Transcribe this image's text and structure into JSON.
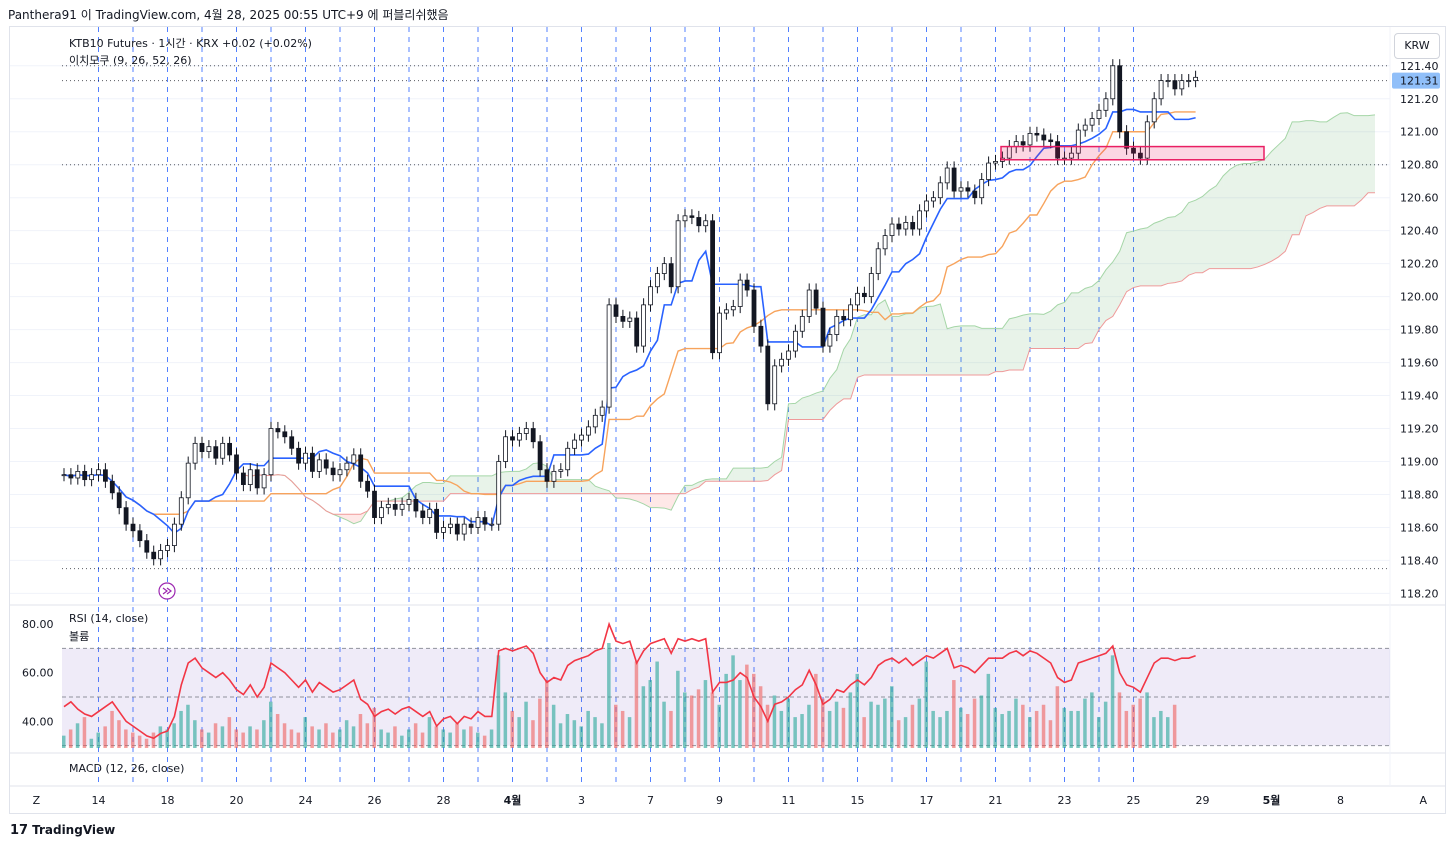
{
  "header": {
    "published_text": "Panthera91 이 TradingView.com, 4월 28, 2025 00:55 UTC+9 에 퍼블리쉬했음"
  },
  "legend": {
    "symbol_line": "KTB10 Futures · 1시간 · KRX  +0.02 (+0.02%)",
    "ichimoku": "이치모쿠 (9, 26, 52, 26)",
    "rsi": "RSI (14, close)",
    "volume": "볼륨",
    "macd": "MACD (12, 26, close)"
  },
  "currency": "KRW",
  "current_price": "121.31",
  "footer": {
    "logo_mark": "17",
    "logo_text": "TradingView"
  },
  "colors": {
    "up": "#26a69a",
    "down": "#ef5350",
    "candle": "#131722",
    "tenkan": "#2962ff",
    "kijun": "#f7a35c",
    "rsi": "#f23645",
    "rsi_band": "#7e57c2",
    "marker": "#9c27b0",
    "price_label": "#90bff9",
    "box": "#e91e63",
    "grid": "#2962ff"
  },
  "chart_data": [
    {
      "type": "candlestick",
      "title": "KTB10 Futures · 1시간 · KRX",
      "y_ticks": [
        "121.40",
        "121.20",
        "121.00",
        "120.80",
        "120.60",
        "120.40",
        "120.20",
        "120.00",
        "119.80",
        "119.60",
        "119.40",
        "119.20",
        "119.00",
        "118.80",
        "118.60",
        "118.40",
        "118.20"
      ],
      "y_tick_values": [
        121.4,
        121.2,
        121.0,
        120.8,
        120.6,
        120.4,
        120.2,
        120.0,
        119.8,
        119.6,
        119.4,
        119.2,
        119.0,
        118.8,
        118.6,
        118.4,
        118.2
      ],
      "ylim": [
        118.16,
        121.52
      ],
      "x_labels": [
        {
          "label": "Z",
          "bar": -4
        },
        {
          "label": "14",
          "bar": 5
        },
        {
          "label": "18",
          "bar": 15
        },
        {
          "label": "20",
          "bar": 25
        },
        {
          "label": "24",
          "bar": 35
        },
        {
          "label": "26",
          "bar": 45
        },
        {
          "label": "28",
          "bar": 55
        },
        {
          "label": "4월",
          "bar": 65
        },
        {
          "label": "3",
          "bar": 75
        },
        {
          "label": "7",
          "bar": 85
        },
        {
          "label": "9",
          "bar": 95
        },
        {
          "label": "11",
          "bar": 105
        },
        {
          "label": "15",
          "bar": 115
        },
        {
          "label": "17",
          "bar": 125
        },
        {
          "label": "21",
          "bar": 135
        },
        {
          "label": "23",
          "bar": 145
        },
        {
          "label": "25",
          "bar": 155
        },
        {
          "label": "29",
          "bar": 165
        },
        {
          "label": "5월",
          "bar": 175
        },
        {
          "label": "8",
          "bar": 185
        },
        {
          "label": "A",
          "bar": 197
        }
      ],
      "session_lines": [
        5,
        10,
        15,
        20,
        25,
        30,
        35,
        40,
        45,
        50,
        55,
        60,
        65,
        70,
        75,
        80,
        85,
        90,
        95,
        100,
        105,
        110,
        115,
        120,
        125,
        130,
        135,
        140,
        145,
        150,
        155
      ],
      "bars": 161,
      "closes": [
        118.92,
        118.9,
        118.94,
        118.89,
        118.92,
        118.95,
        118.88,
        118.81,
        118.72,
        118.62,
        118.58,
        118.52,
        118.45,
        118.41,
        118.46,
        118.49,
        118.62,
        118.78,
        118.99,
        119.11,
        119.06,
        119.09,
        119.02,
        119.11,
        119.04,
        118.93,
        118.86,
        118.95,
        118.84,
        118.92,
        119.2,
        119.18,
        119.15,
        119.08,
        118.99,
        119.05,
        118.94,
        119.01,
        118.96,
        118.92,
        118.95,
        118.99,
        119.04,
        118.88,
        118.82,
        118.66,
        118.72,
        118.74,
        118.71,
        118.74,
        118.77,
        118.7,
        118.66,
        118.71,
        118.57,
        118.6,
        118.62,
        118.56,
        118.62,
        118.6,
        118.66,
        118.62,
        118.62,
        119.0,
        119.15,
        119.13,
        119.17,
        119.2,
        119.12,
        118.95,
        118.88,
        118.94,
        118.95,
        119.08,
        119.13,
        119.16,
        119.21,
        119.28,
        119.33,
        119.95,
        119.88,
        119.85,
        119.87,
        119.7,
        119.95,
        120.06,
        120.14,
        120.2,
        120.06,
        120.46,
        120.49,
        120.48,
        120.43,
        120.46,
        119.66,
        119.9,
        119.92,
        119.94,
        120.1,
        120.04,
        119.82,
        119.7,
        119.35,
        119.58,
        119.62,
        119.67,
        119.79,
        119.88,
        120.04,
        119.93,
        119.7,
        119.77,
        119.88,
        119.86,
        119.95,
        120.02,
        120.0,
        120.14,
        120.29,
        120.37,
        120.44,
        120.41,
        120.45,
        120.41,
        120.52,
        120.58,
        120.6,
        120.69,
        120.78,
        120.64,
        120.66,
        120.64,
        120.6,
        120.71,
        120.81,
        120.82,
        120.84,
        120.91,
        120.94,
        120.92,
        120.99,
        120.98,
        120.95,
        120.94,
        120.84,
        120.84,
        120.87,
        121.01,
        121.04,
        121.08,
        121.13,
        121.2,
        121.4,
        121.0,
        120.9,
        120.87,
        120.84,
        121.06,
        121.2,
        121.31,
        121.31,
        121.26,
        121.31,
        121.31,
        121.33
      ]
    },
    {
      "type": "line",
      "title": "RSI (14, close)",
      "y_ticks": [
        "80.00",
        "60.00",
        "40.00"
      ],
      "y_tick_values": [
        80,
        60,
        40
      ],
      "ylim": [
        29,
        85
      ],
      "bands": [
        70,
        50,
        30
      ],
      "values": [
        46,
        48,
        45,
        43,
        42,
        44,
        46,
        48,
        44,
        40,
        38,
        36,
        34,
        33,
        35,
        36,
        42,
        55,
        64,
        66,
        62,
        60,
        58,
        60,
        57,
        53,
        51,
        55,
        50,
        54,
        64,
        62,
        60,
        57,
        54,
        57,
        52,
        56,
        54,
        52,
        53,
        55,
        57,
        49,
        47,
        42,
        44,
        45,
        43,
        45,
        46,
        44,
        42,
        44,
        38,
        41,
        42,
        39,
        42,
        41,
        44,
        42,
        42,
        69,
        70,
        69,
        70,
        71,
        68,
        60,
        56,
        58,
        57,
        63,
        65,
        66,
        67,
        69,
        70,
        80,
        73,
        72,
        73,
        64,
        69,
        72,
        73,
        74,
        68,
        74,
        73,
        74,
        73,
        74,
        52,
        56,
        56,
        57,
        60,
        58,
        50,
        46,
        40,
        47,
        48,
        50,
        53,
        55,
        61,
        55,
        47,
        49,
        53,
        52,
        55,
        57,
        55,
        58,
        63,
        65,
        66,
        64,
        66,
        63,
        65,
        67,
        66,
        68,
        70,
        62,
        63,
        62,
        60,
        63,
        66,
        66,
        66,
        68,
        69,
        67,
        69,
        68,
        66,
        64,
        58,
        56,
        57,
        64,
        65,
        66,
        67,
        68,
        71,
        60,
        55,
        54,
        52,
        58,
        64,
        66,
        66,
        65,
        66,
        66,
        67
      ]
    },
    {
      "type": "bar",
      "title": "볼륨",
      "values": [
        4,
        6,
        8,
        10,
        3,
        5,
        7,
        12,
        9,
        6,
        5,
        4,
        3,
        5,
        7,
        6,
        8,
        12,
        14,
        9,
        6,
        5,
        8,
        7,
        10,
        6,
        5,
        7,
        6,
        9,
        15,
        11,
        8,
        6,
        5,
        10,
        7,
        6,
        8,
        5,
        6,
        9,
        7,
        11,
        8,
        13,
        6,
        5,
        7,
        4,
        6,
        8,
        5,
        10,
        7,
        6,
        5,
        8,
        6,
        7,
        5,
        4,
        6,
        30,
        18,
        12,
        10,
        15,
        9,
        16,
        22,
        14,
        8,
        11,
        9,
        7,
        12,
        10,
        8,
        34,
        14,
        12,
        10,
        28,
        20,
        22,
        28,
        15,
        12,
        25,
        18,
        17,
        19,
        22,
        18,
        14,
        24,
        30,
        22,
        27,
        24,
        20,
        14,
        17,
        12,
        16,
        10,
        11,
        14,
        24,
        16,
        12,
        15,
        13,
        18,
        24,
        10,
        15,
        14,
        16,
        20,
        9,
        10,
        14,
        16,
        28,
        12,
        10,
        12,
        22,
        13,
        11,
        16,
        17,
        24,
        13,
        11,
        12,
        16,
        14,
        10,
        12,
        14,
        9,
        20,
        13,
        12,
        12,
        16,
        18,
        10,
        15,
        30,
        18,
        12,
        14,
        16,
        18,
        10,
        12,
        10,
        14
      ]
    }
  ]
}
